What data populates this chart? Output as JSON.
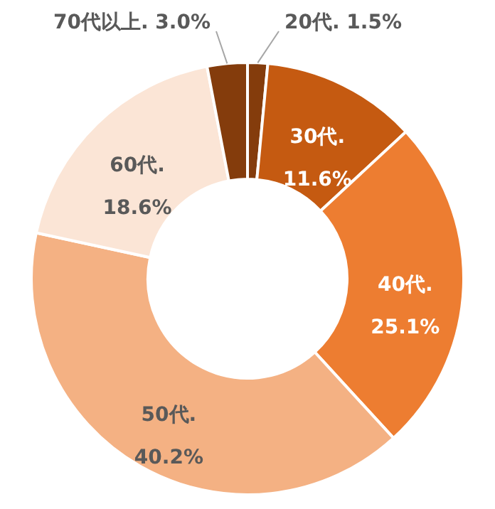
{
  "chart_data": {
    "type": "donut",
    "categories": [
      "20代.",
      "30代.",
      "40代.",
      "50代.",
      "60代.",
      "70代以上."
    ],
    "values": [
      1.5,
      11.6,
      25.1,
      40.2,
      18.6,
      3.0
    ],
    "value_labels": [
      "1.5%",
      "11.6%",
      "25.1%",
      "40.2%",
      "18.6%",
      "3.0%"
    ],
    "colors": [
      "#843c0c",
      "#c55a11",
      "#ed7d31",
      "#f4b183",
      "#fbe5d6",
      "#843c0c"
    ]
  }
}
